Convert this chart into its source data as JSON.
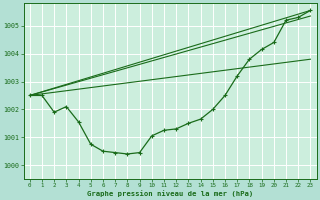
{
  "background_color": "#b3e0d4",
  "plot_bg_color": "#cceedd",
  "grid_color": "#ffffff",
  "line_color": "#1a6b1a",
  "xlabel": "Graphe pression niveau de la mer (hPa)",
  "xlim": [
    -0.5,
    23.5
  ],
  "ylim": [
    999.5,
    1005.8
  ],
  "yticks": [
    1000,
    1001,
    1002,
    1003,
    1004,
    1005
  ],
  "xticks": [
    0,
    1,
    2,
    3,
    4,
    5,
    6,
    7,
    8,
    9,
    10,
    11,
    12,
    13,
    14,
    15,
    16,
    17,
    18,
    19,
    20,
    21,
    22,
    23
  ],
  "main_line": {
    "x": [
      0,
      1,
      2,
      3,
      4,
      5,
      6,
      7,
      8,
      9,
      10,
      11,
      12,
      13,
      14,
      15,
      16,
      17,
      18,
      19,
      20,
      21,
      22,
      23
    ],
    "y": [
      1002.5,
      1002.5,
      1001.9,
      1002.1,
      1001.55,
      1000.75,
      1000.5,
      1000.45,
      1000.4,
      1000.45,
      1001.05,
      1001.25,
      1001.3,
      1001.5,
      1001.65,
      1002.0,
      1002.5,
      1003.2,
      1003.8,
      1004.15,
      1004.4,
      1005.2,
      1005.3,
      1005.55
    ]
  },
  "straight_lines": [
    {
      "x": [
        0,
        23
      ],
      "y": [
        1002.5,
        1005.55
      ]
    },
    {
      "x": [
        0,
        23
      ],
      "y": [
        1002.5,
        1005.35
      ]
    },
    {
      "x": [
        0,
        23
      ],
      "y": [
        1002.5,
        1003.8
      ]
    }
  ],
  "figsize": [
    3.2,
    2.0
  ],
  "dpi": 100
}
